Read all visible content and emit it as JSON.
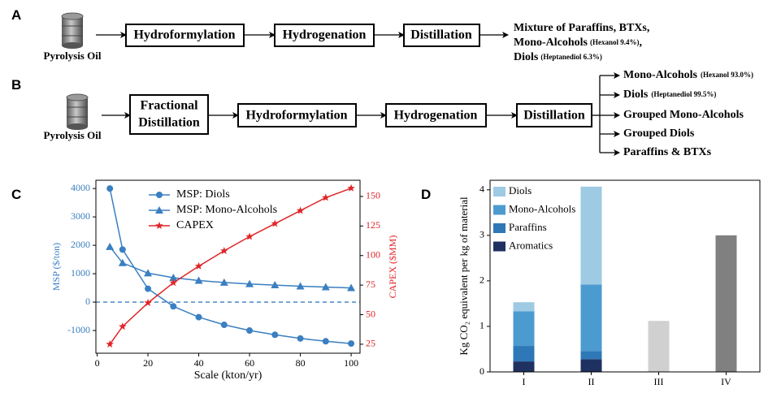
{
  "diagram_a": {
    "label": "A",
    "source": "Pyrolysis Oil",
    "steps": [
      "Hydroformylation",
      "Hydrogenation",
      "Distillation"
    ],
    "products": [
      {
        "text": "Mixture of Paraffins, BTXs,"
      },
      {
        "text": "Mono-Alcohols",
        "note": "(Hexanol 9.4%)",
        "tail": ","
      },
      {
        "text": "Diols",
        "note": "(Heptanediol 6.3%)"
      }
    ]
  },
  "diagram_b": {
    "label": "B",
    "source": "Pyrolysis Oil",
    "steps": [
      [
        "Fractional",
        "Distillation"
      ],
      [
        "Hydroformylation"
      ],
      [
        "Hydrogenation"
      ],
      [
        "Distillation"
      ]
    ],
    "products": [
      {
        "text": "Mono-Alcohols",
        "note": "(Hexanol 93.0%)"
      },
      {
        "text": "Diols",
        "note": "(Heptanediol 99.5%)"
      },
      {
        "text": "Grouped Mono-Alcohols"
      },
      {
        "text": "Grouped Diols"
      },
      {
        "text": "Paraffins & BTXs"
      }
    ]
  },
  "chart_data": [
    {
      "type": "line",
      "panel_label": "C",
      "x": [
        5,
        10,
        20,
        30,
        40,
        50,
        60,
        70,
        80,
        90,
        100
      ],
      "xlabel": "Scale (kton/yr)",
      "ylabel": "MSP ($/ton)",
      "y2label": "CAPEX ($MM)",
      "xlim": [
        -0.5,
        103.5
      ],
      "xticks": [
        0,
        20,
        40,
        60,
        80,
        100
      ],
      "ylim": [
        -1800,
        4290
      ],
      "yticks": [
        -1000,
        0,
        1000,
        2000,
        3000,
        4000
      ],
      "y2lim": [
        17.4,
        163.7
      ],
      "y2ticks": [
        25,
        50,
        75,
        100,
        125,
        150
      ],
      "ycolor": "#3a7fc1",
      "y2color": "#e02428",
      "hlines": [
        0
      ],
      "legend": "upper center",
      "series": [
        {
          "name": "MSP: Diols",
          "color": "#3a7fc1",
          "marker": "o",
          "values": [
            4000,
            1850,
            470,
            -150,
            -530,
            -800,
            -1000,
            -1150,
            -1280,
            -1380,
            -1460
          ]
        },
        {
          "name": "MSP: Mono-Alcohols",
          "color": "#3a7fc1",
          "marker": "^",
          "values": [
            1950,
            1380,
            1020,
            860,
            760,
            690,
            640,
            600,
            560,
            530,
            500
          ]
        },
        {
          "name": "CAPEX",
          "color": "#e02428",
          "marker": "*",
          "axis": "y2",
          "values": [
            25,
            40,
            60,
            77,
            91,
            104,
            116,
            127,
            138,
            149,
            157
          ]
        }
      ]
    },
    {
      "type": "stacked_bar",
      "panel_label": "D",
      "categories": [
        "I",
        "II",
        "III",
        "IV"
      ],
      "ylabel": "Kg CO₂ equivalent per kg of material",
      "ylim": [
        0,
        4.21
      ],
      "yticks": [
        0,
        1,
        2,
        3,
        4
      ],
      "legend": "upper left",
      "series": [
        {
          "name": "Aromatics",
          "color": "#1f3160",
          "values": [
            0.23,
            0.28,
            null,
            null
          ]
        },
        {
          "name": "Paraffins",
          "color": "#2e78b7",
          "values": [
            0.34,
            0.18,
            null,
            null
          ]
        },
        {
          "name": "Mono-Alcohols",
          "color": "#4c9bd0",
          "values": [
            0.76,
            1.46,
            null,
            null
          ]
        },
        {
          "name": "Diols",
          "color": "#9ecae3",
          "values": [
            0.2,
            2.15,
            null,
            null
          ]
        },
        {
          "color": "#d0d0d0",
          "values": [
            null,
            null,
            1.12,
            null
          ]
        },
        {
          "color": "#808080",
          "values": [
            null,
            null,
            null,
            3.0
          ]
        }
      ]
    }
  ]
}
